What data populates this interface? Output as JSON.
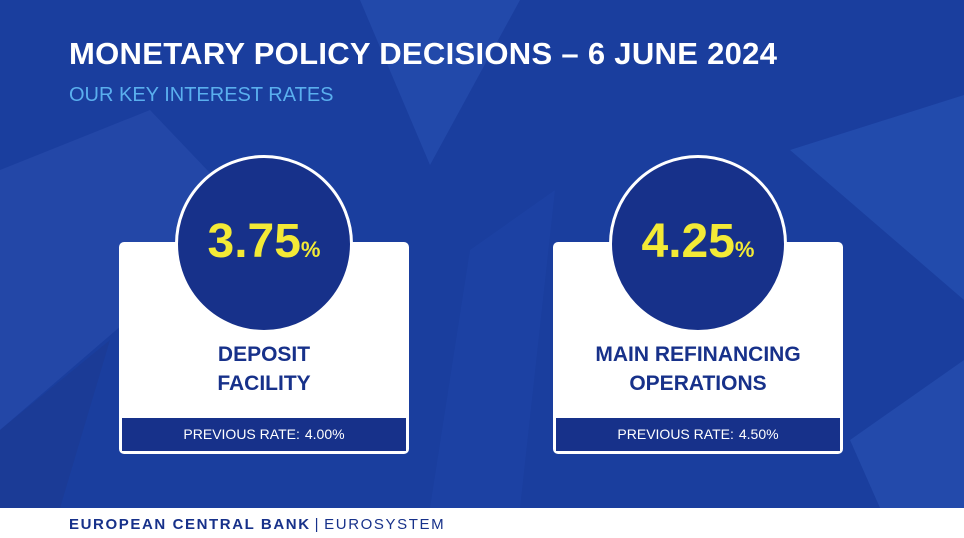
{
  "header": {
    "title": "MONETARY POLICY DECISIONS – 6 JUNE 2024",
    "subtitle": "OUR KEY INTEREST RATES"
  },
  "rates": [
    {
      "value": "3.75",
      "unit": "%",
      "label_lines": [
        "DEPOSIT",
        "FACILITY"
      ],
      "previous_label": "PREVIOUS RATE:",
      "previous_value": "4.00%"
    },
    {
      "value": "4.25",
      "unit": "%",
      "label_lines": [
        "MAIN REFINANCING",
        "OPERATIONS"
      ],
      "previous_label": "PREVIOUS RATE:",
      "previous_value": "4.50%"
    }
  ],
  "footer": {
    "organization": "EUROPEAN CENTRAL BANK",
    "separator": "|",
    "system": "EUROSYSTEM"
  },
  "colors": {
    "background": "#1a3e9e",
    "navy": "#17318a",
    "rate_yellow": "#f3ea36",
    "subtitle_blue": "#5aafee",
    "white": "#ffffff"
  }
}
